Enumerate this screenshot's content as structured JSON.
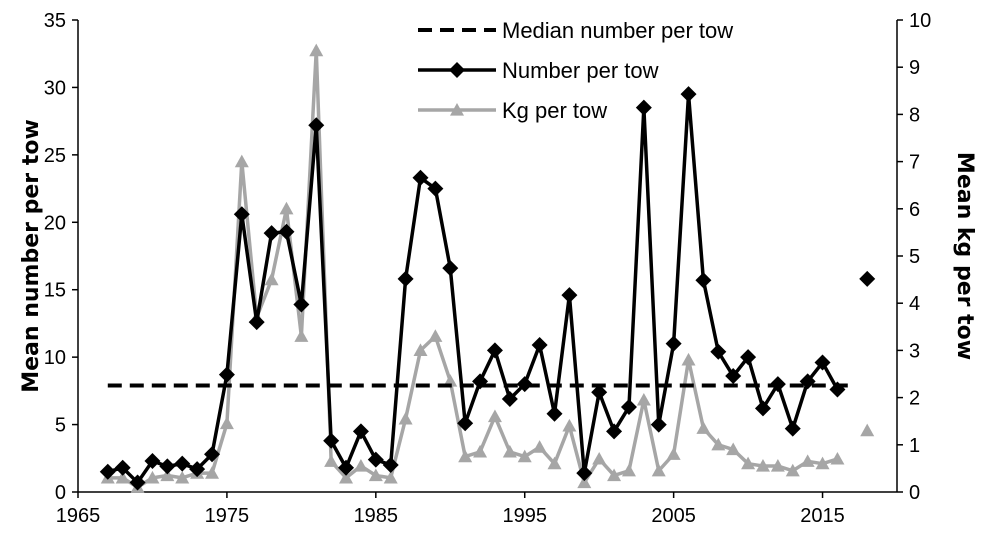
{
  "chart_data": {
    "type": "line",
    "xlabel": "",
    "ylabel_left": "Mean number per tow",
    "ylabel_right": "Mean kg per tow",
    "xlim": [
      1965,
      2020
    ],
    "xticks": [
      "1965",
      "1975",
      "1985",
      "1995",
      "2005",
      "2015"
    ],
    "ylim_left": [
      0,
      35
    ],
    "yticks_left": [
      "0",
      "5",
      "10",
      "15",
      "20",
      "25",
      "30",
      "35"
    ],
    "ylim_right": [
      0,
      10
    ],
    "yticks_right": [
      "0",
      "1",
      "2",
      "3",
      "4",
      "5",
      "6",
      "7",
      "8",
      "9",
      "10"
    ],
    "grid": false,
    "legend_position": "top-right",
    "series": [
      {
        "name": "Median number per tow",
        "axis": "left",
        "style": "dashed",
        "color": "#000000",
        "x": [
          1967,
          2017
        ],
        "y": [
          7.9,
          7.9
        ]
      },
      {
        "name": "Number per tow",
        "axis": "left",
        "style": "solid",
        "marker": "diamond",
        "color": "#000000",
        "x": [
          1967,
          1968,
          1969,
          1970,
          1971,
          1972,
          1973,
          1974,
          1975,
          1976,
          1977,
          1978,
          1979,
          1980,
          1981,
          1982,
          1983,
          1984,
          1985,
          1986,
          1987,
          1988,
          1989,
          1990,
          1991,
          1992,
          1993,
          1994,
          1995,
          1996,
          1997,
          1998,
          1999,
          2000,
          2001,
          2002,
          2003,
          2004,
          2005,
          2006,
          2007,
          2008,
          2009,
          2010,
          2011,
          2012,
          2013,
          2014,
          2015,
          2016
        ],
        "y": [
          1.5,
          1.8,
          0.7,
          2.3,
          1.9,
          2.1,
          1.7,
          2.8,
          8.7,
          20.6,
          12.6,
          19.2,
          19.3,
          13.9,
          27.2,
          3.8,
          1.8,
          4.5,
          2.4,
          2.0,
          15.8,
          23.3,
          22.5,
          16.6,
          5.1,
          8.2,
          10.5,
          6.9,
          8.0,
          10.9,
          5.8,
          14.6,
          1.4,
          7.4,
          4.5,
          6.3,
          28.5,
          5.0,
          11.0,
          29.5,
          15.7,
          10.4,
          8.6,
          10.0,
          6.2,
          8.0,
          4.7,
          8.2,
          9.6,
          7.6
        ]
      },
      {
        "name": "Number per tow (2018)",
        "axis": "left",
        "style": "marker-only",
        "marker": "diamond",
        "color": "#000000",
        "x": [
          2018
        ],
        "y": [
          15.8
        ]
      },
      {
        "name": "Kg per tow",
        "axis": "right",
        "style": "solid",
        "marker": "triangle",
        "color": "#a6a6a6",
        "x": [
          1967,
          1968,
          1969,
          1970,
          1971,
          1972,
          1973,
          1974,
          1975,
          1976,
          1977,
          1978,
          1979,
          1980,
          1981,
          1982,
          1983,
          1984,
          1985,
          1986,
          1987,
          1988,
          1989,
          1990,
          1991,
          1992,
          1993,
          1994,
          1995,
          1996,
          1997,
          1998,
          1999,
          2000,
          2001,
          2002,
          2003,
          2004,
          2005,
          2006,
          2007,
          2008,
          2009,
          2010,
          2011,
          2012,
          2013,
          2014,
          2015,
          2016
        ],
        "y": [
          0.3,
          0.3,
          0.1,
          0.3,
          0.35,
          0.3,
          0.4,
          0.4,
          1.45,
          7.0,
          3.7,
          4.5,
          6.0,
          3.3,
          9.35,
          0.65,
          0.3,
          0.55,
          0.35,
          0.3,
          1.55,
          3.0,
          3.3,
          2.35,
          0.75,
          0.85,
          1.6,
          0.85,
          0.75,
          0.95,
          0.6,
          1.4,
          0.2,
          0.7,
          0.35,
          0.45,
          1.95,
          0.45,
          0.8,
          2.8,
          1.35,
          1.0,
          0.9,
          0.6,
          0.55,
          0.55,
          0.45,
          0.65,
          0.6,
          0.7
        ]
      },
      {
        "name": "Kg per tow (2018)",
        "axis": "right",
        "style": "marker-only",
        "marker": "triangle",
        "color": "#a6a6a6",
        "x": [
          2018
        ],
        "y": [
          1.3
        ]
      }
    ],
    "legend": [
      {
        "label": "Median number per tow",
        "style": "dashed",
        "color": "#000000"
      },
      {
        "label": "Number per tow",
        "style": "solid",
        "marker": "diamond",
        "color": "#000000"
      },
      {
        "label": "Kg per tow",
        "style": "solid",
        "marker": "triangle",
        "color": "#a6a6a6"
      }
    ]
  }
}
